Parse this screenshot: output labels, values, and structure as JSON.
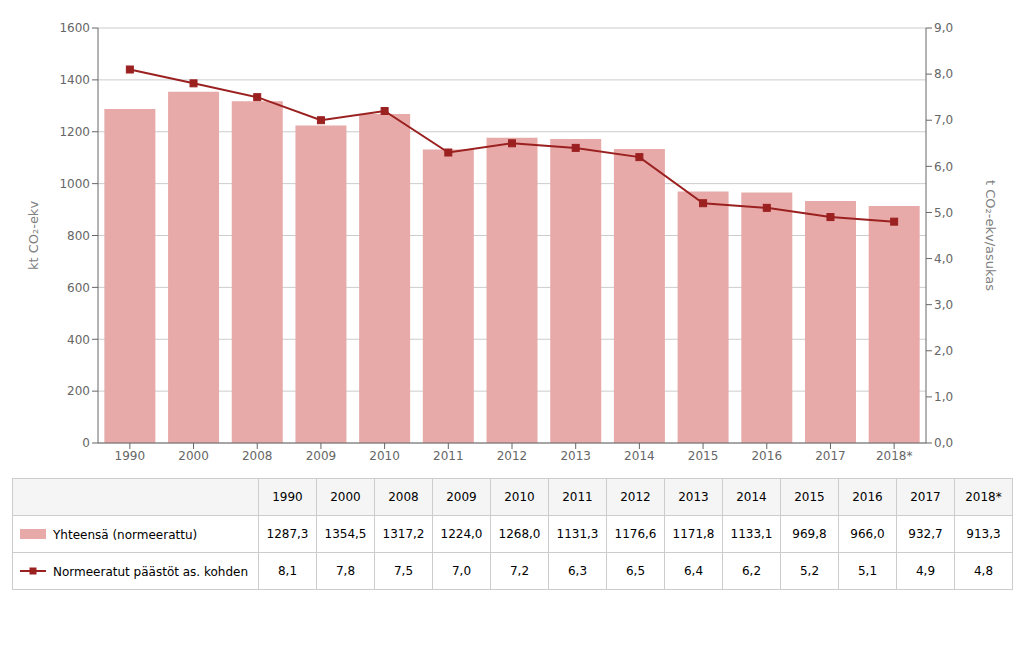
{
  "chart_data": {
    "type": "bar",
    "categories": [
      "1990",
      "2000",
      "2008",
      "2009",
      "2010",
      "2011",
      "2012",
      "2013",
      "2014",
      "2015",
      "2016",
      "2017",
      "2018*"
    ],
    "series": [
      {
        "name": "Yhteensä (normeerattu)",
        "type": "bar",
        "color": "#e8a9a9",
        "values": [
          1287.3,
          1354.5,
          1317.2,
          1224.0,
          1268.0,
          1131.3,
          1176.6,
          1171.8,
          1133.1,
          969.8,
          966.0,
          932.7,
          913.3
        ],
        "value_labels": [
          "1287,3",
          "1354,5",
          "1317,2",
          "1224,0",
          "1268,0",
          "1131,3",
          "1176,6",
          "1171,8",
          "1133,1",
          "969,8",
          "966,0",
          "932,7",
          "913,3"
        ]
      },
      {
        "name": "Normeeratut päästöt as. kohden",
        "type": "line",
        "axis": "y2",
        "color": "#9b2020",
        "marker": "square",
        "values": [
          8.1,
          7.8,
          7.5,
          7.0,
          7.2,
          6.3,
          6.5,
          6.4,
          6.2,
          5.2,
          5.1,
          4.9,
          4.8
        ],
        "value_labels": [
          "8,1",
          "7,8",
          "7,5",
          "7,0",
          "7,2",
          "6,3",
          "6,5",
          "6,4",
          "6,2",
          "5,2",
          "5,1",
          "4,9",
          "4,8"
        ]
      }
    ],
    "y_label": "kt CO₂-ekv",
    "y2_label": "t CO₂-ekv/asukas",
    "ylim": [
      0,
      1600
    ],
    "yticks": [
      0,
      200,
      400,
      600,
      800,
      1000,
      1200,
      1400,
      1600
    ],
    "y2lim": [
      0.0,
      9.0
    ],
    "y2ticks": [
      {
        "value": 0.0,
        "label": "0,0"
      },
      {
        "value": 1.0,
        "label": "1,0"
      },
      {
        "value": 2.0,
        "label": "2,0"
      },
      {
        "value": 3.0,
        "label": "3,0"
      },
      {
        "value": 4.0,
        "label": "4,0"
      },
      {
        "value": 5.0,
        "label": "5,0"
      },
      {
        "value": 6.0,
        "label": "6,0"
      },
      {
        "value": 7.0,
        "label": "7,0"
      },
      {
        "value": 8.0,
        "label": "8,0"
      },
      {
        "value": 9.0,
        "label": "9,0"
      }
    ],
    "grid": true
  }
}
